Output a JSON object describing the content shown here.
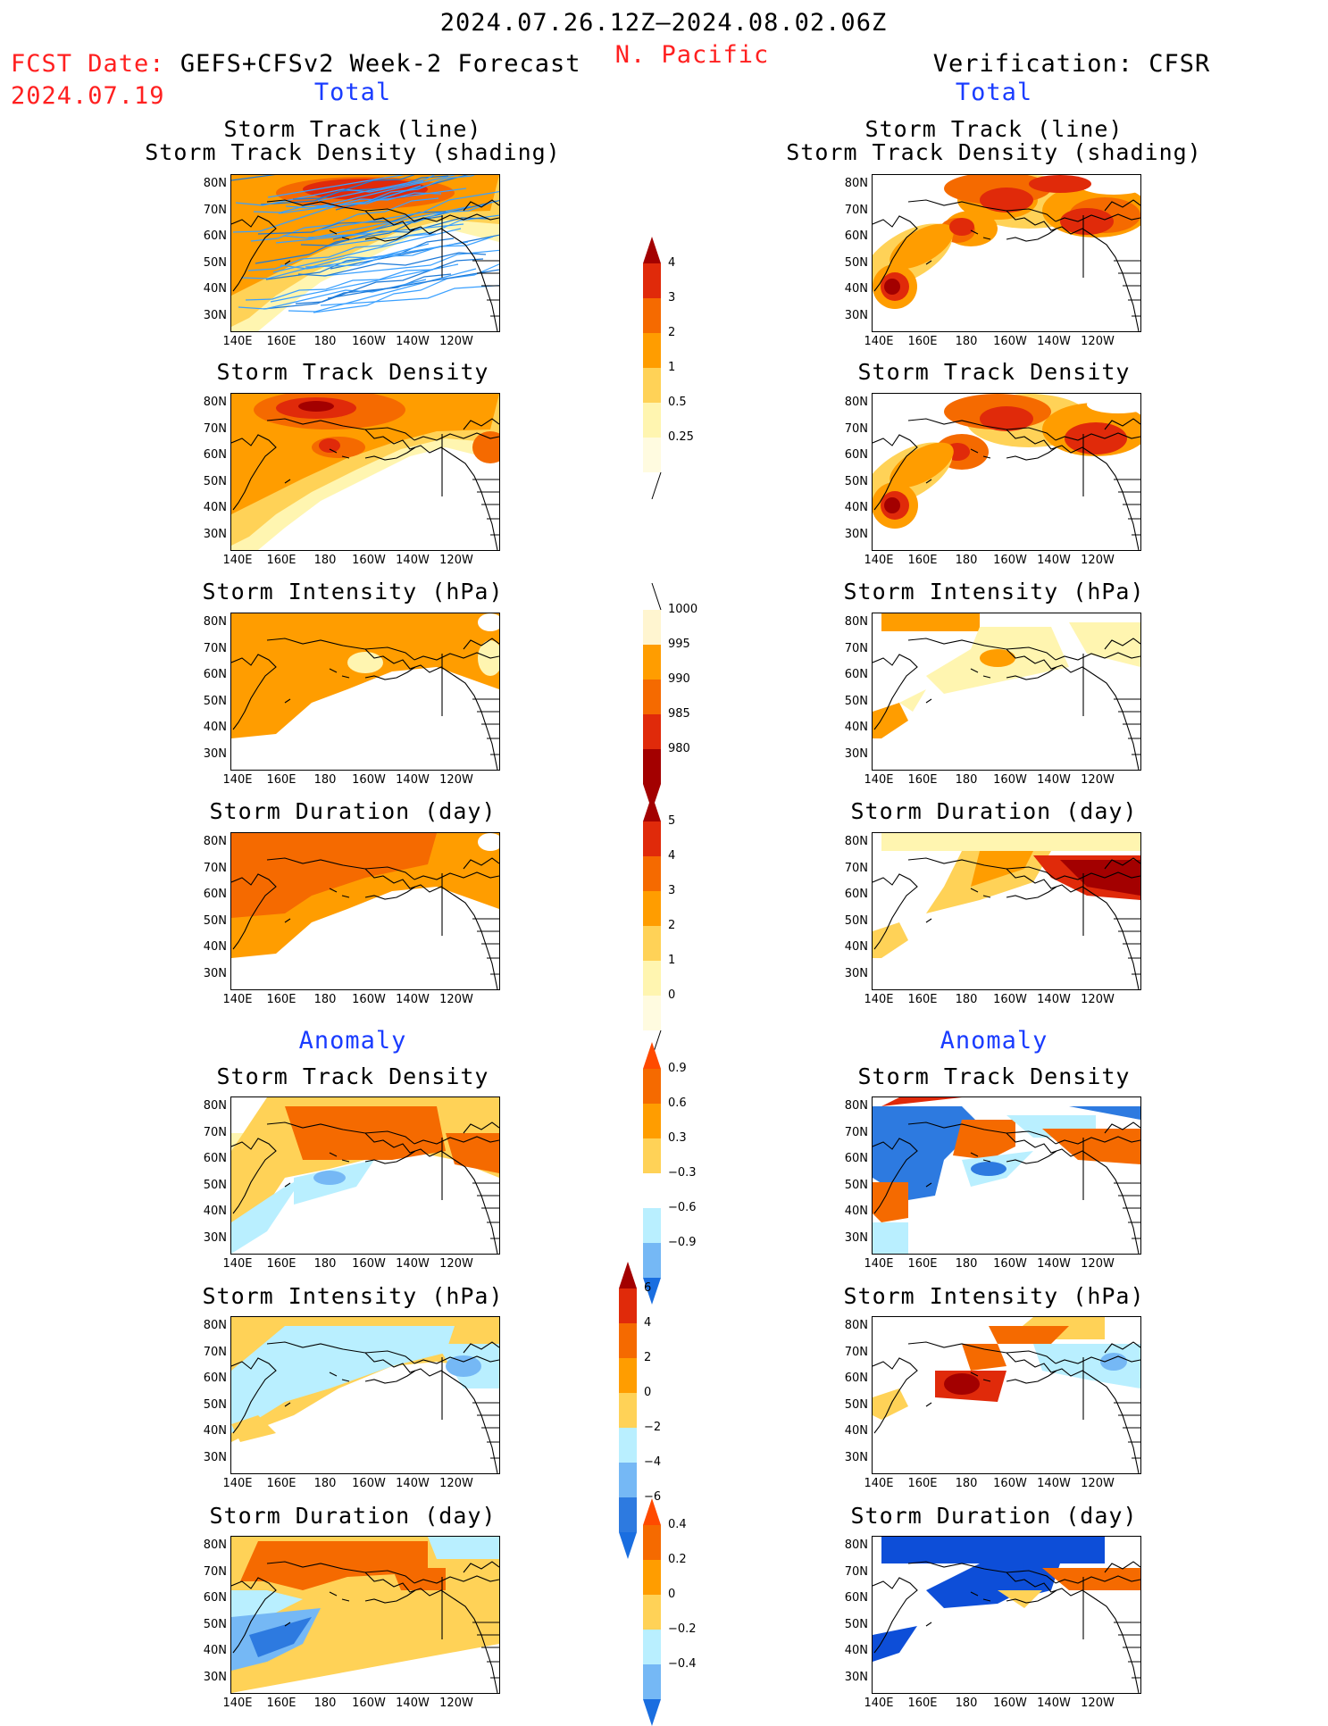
{
  "header": {
    "time_range": "2024.07.26.12Z–2024.08.02.06Z",
    "region": "N. Pacific",
    "fcst_label": "FCST Date:",
    "fcst_model": "GEFS+CFSv2 Week-2 Forecast",
    "fcst_date": "2024.07.19",
    "verification": "Verification: CFSR",
    "left_section_total": "Total",
    "right_section_total": "Total",
    "left_section_anomaly": "Anomaly",
    "right_section_anomaly": "Anomaly"
  },
  "axes": {
    "y_ticks": [
      "80N",
      "70N",
      "60N",
      "50N",
      "40N",
      "30N"
    ],
    "x_ticks": [
      "140E",
      "160E",
      "180",
      "160W",
      "140W",
      "120W"
    ]
  },
  "panels": {
    "p1_title1": "Storm Track (line)",
    "p1_title2": "Storm Track Density (shading)",
    "p2_title": "Storm Track Density",
    "p3_title": "Storm Intensity (hPa)",
    "p4_title": "Storm Duration (day)",
    "p5_title": "Storm Track Density",
    "p6_title": "Storm Intensity (hPa)",
    "p7_title": "Storm Duration (day)"
  },
  "colorbars": {
    "density": [
      "4",
      "3",
      "2",
      "1",
      "0.5",
      "0.25"
    ],
    "intensity": [
      "1000",
      "995",
      "990",
      "985",
      "980"
    ],
    "duration": [
      "5",
      "4",
      "3",
      "2",
      "1",
      "0"
    ],
    "density_anom": [
      "0.9",
      "0.6",
      "0.3",
      "−0.3",
      "−0.6",
      "−0.9"
    ],
    "intensity_anom": [
      "6",
      "4",
      "2",
      "0",
      "−2",
      "−4",
      "−6"
    ],
    "duration_anom": [
      "0.4",
      "0.2",
      "0",
      "−0.2",
      "−0.4"
    ]
  },
  "colors": {
    "pale_yellow": "#fff5b0",
    "yellow": "#ffd257",
    "orange": "#ff9d00",
    "dark_orange": "#f56a00",
    "red": "#e02a0a",
    "dark_red": "#a30000",
    "light_blue": "#b9efff",
    "mid_blue": "#75b8f5",
    "blue": "#2d7ae0",
    "dark_blue": "#0d4ed8"
  }
}
